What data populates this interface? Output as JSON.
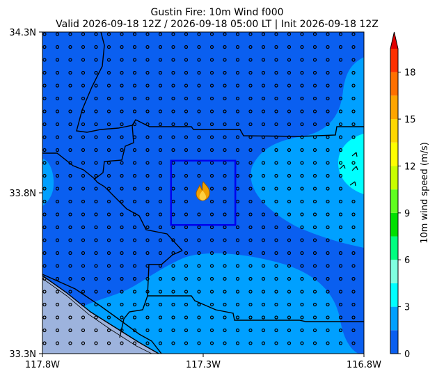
{
  "title": {
    "line1": "Gustin Fire: 10m Wind f000",
    "line2": "Valid 2026-09-18 12Z / 2026-09-18 05:00 LT | Init 2026-09-18 12Z"
  },
  "map": {
    "extent": {
      "lon_min": -117.8,
      "lon_max": -116.8,
      "lat_min": 33.3,
      "lat_max": 34.3
    },
    "x_ticks": [
      {
        "value": -117.8,
        "label": "117.8W"
      },
      {
        "value": -117.3,
        "label": "117.3W"
      },
      {
        "value": -116.8,
        "label": "116.8W"
      }
    ],
    "y_ticks": [
      {
        "value": 34.3,
        "label": "34.3N"
      },
      {
        "value": 33.8,
        "label": "33.8N"
      },
      {
        "value": 33.3,
        "label": "33.3N"
      }
    ],
    "fire_box": {
      "lon_min": -117.4,
      "lon_max": -117.2,
      "lat_min": 33.7,
      "lat_max": 33.9,
      "color": "#0000ee"
    },
    "fire_icon": {
      "name": "fire-icon",
      "lon": -117.3,
      "lat": 33.8
    },
    "ocean_color": "#9db3dd",
    "border_color": "#000000",
    "station_barbs": "calm-circles"
  },
  "colorbar": {
    "label": "10m wind speed (m/s)",
    "min": 0,
    "max": 19.5,
    "extend": "max",
    "ticks": [
      {
        "value": 0,
        "label": "0"
      },
      {
        "value": 3,
        "label": "3"
      },
      {
        "value": 6,
        "label": "6"
      },
      {
        "value": 9,
        "label": "9"
      },
      {
        "value": 12,
        "label": "12"
      },
      {
        "value": 15,
        "label": "15"
      },
      {
        "value": 18,
        "label": "18"
      }
    ],
    "levels": [
      {
        "from": 0,
        "to": 1.5,
        "color": "#0a5ff0"
      },
      {
        "from": 1.5,
        "to": 3,
        "color": "#00a0ff"
      },
      {
        "from": 3,
        "to": 4.5,
        "color": "#00ffff"
      },
      {
        "from": 4.5,
        "to": 6,
        "color": "#80ffe0"
      },
      {
        "from": 6,
        "to": 7.5,
        "color": "#00ff80"
      },
      {
        "from": 7.5,
        "to": 9,
        "color": "#00e000"
      },
      {
        "from": 9,
        "to": 10.5,
        "color": "#60ff20"
      },
      {
        "from": 10.5,
        "to": 12,
        "color": "#c8ff00"
      },
      {
        "from": 12,
        "to": 13.5,
        "color": "#ffff00"
      },
      {
        "from": 13.5,
        "to": 15,
        "color": "#ffd700"
      },
      {
        "from": 15,
        "to": 16.5,
        "color": "#ffa500"
      },
      {
        "from": 16.5,
        "to": 18,
        "color": "#ff7000"
      },
      {
        "from": 18,
        "to": 19.5,
        "color": "#ff3000"
      }
    ],
    "extend_color": "#e00000"
  }
}
